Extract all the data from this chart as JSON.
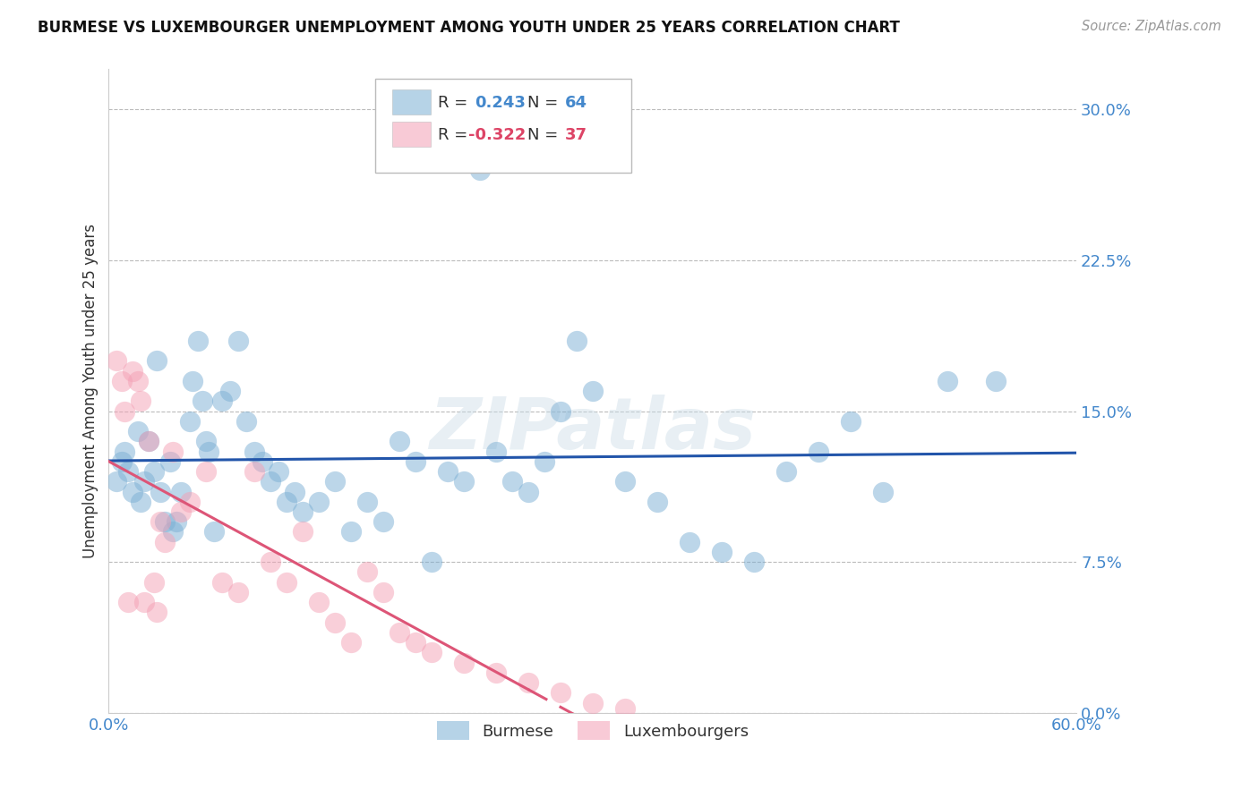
{
  "title": "BURMESE VS LUXEMBOURGER UNEMPLOYMENT AMONG YOUTH UNDER 25 YEARS CORRELATION CHART",
  "source": "Source: ZipAtlas.com",
  "ylabel": "Unemployment Among Youth under 25 years",
  "ytick_values": [
    0.0,
    7.5,
    15.0,
    22.5,
    30.0
  ],
  "xlim": [
    0.0,
    60.0
  ],
  "ylim": [
    0.0,
    32.0
  ],
  "legend_blue_R": "0.243",
  "legend_blue_N": "64",
  "legend_pink_R": "-0.322",
  "legend_pink_N": "37",
  "blue_color": "#7BAFD4",
  "pink_color": "#F4A0B5",
  "line_blue": "#2255AA",
  "line_pink": "#DD5577",
  "watermark": "ZIPatlas",
  "blue_scatter_x": [
    0.5,
    0.8,
    1.0,
    1.2,
    1.5,
    1.8,
    2.0,
    2.2,
    2.5,
    2.8,
    3.0,
    3.2,
    3.5,
    3.8,
    4.0,
    4.2,
    4.5,
    5.0,
    5.2,
    5.5,
    5.8,
    6.0,
    6.2,
    6.5,
    7.0,
    7.5,
    8.0,
    8.5,
    9.0,
    9.5,
    10.0,
    10.5,
    11.0,
    11.5,
    12.0,
    13.0,
    14.0,
    15.0,
    16.0,
    17.0,
    18.0,
    19.0,
    20.0,
    21.0,
    22.0,
    23.0,
    24.0,
    25.0,
    26.0,
    27.0,
    28.0,
    29.0,
    30.0,
    32.0,
    34.0,
    36.0,
    38.0,
    40.0,
    42.0,
    44.0,
    46.0,
    48.0,
    52.0,
    55.0
  ],
  "blue_scatter_y": [
    11.5,
    12.5,
    13.0,
    12.0,
    11.0,
    14.0,
    10.5,
    11.5,
    13.5,
    12.0,
    17.5,
    11.0,
    9.5,
    12.5,
    9.0,
    9.5,
    11.0,
    14.5,
    16.5,
    18.5,
    15.5,
    13.5,
    13.0,
    9.0,
    15.5,
    16.0,
    18.5,
    14.5,
    13.0,
    12.5,
    11.5,
    12.0,
    10.5,
    11.0,
    10.0,
    10.5,
    11.5,
    9.0,
    10.5,
    9.5,
    13.5,
    12.5,
    7.5,
    12.0,
    11.5,
    27.0,
    13.0,
    11.5,
    11.0,
    12.5,
    15.0,
    18.5,
    16.0,
    11.5,
    10.5,
    8.5,
    8.0,
    7.5,
    12.0,
    13.0,
    14.5,
    11.0,
    16.5,
    16.5
  ],
  "pink_scatter_x": [
    0.5,
    0.8,
    1.0,
    1.2,
    1.5,
    1.8,
    2.0,
    2.2,
    2.5,
    2.8,
    3.0,
    3.2,
    3.5,
    4.0,
    4.5,
    5.0,
    6.0,
    7.0,
    8.0,
    9.0,
    10.0,
    11.0,
    12.0,
    13.0,
    14.0,
    15.0,
    16.0,
    17.0,
    18.0,
    19.0,
    20.0,
    22.0,
    24.0,
    26.0,
    28.0,
    30.0,
    32.0
  ],
  "pink_scatter_y": [
    17.5,
    16.5,
    15.0,
    5.5,
    17.0,
    16.5,
    15.5,
    5.5,
    13.5,
    6.5,
    5.0,
    9.5,
    8.5,
    13.0,
    10.0,
    10.5,
    12.0,
    6.5,
    6.0,
    12.0,
    7.5,
    6.5,
    9.0,
    5.5,
    4.5,
    3.5,
    7.0,
    6.0,
    4.0,
    3.5,
    3.0,
    2.5,
    2.0,
    1.5,
    1.0,
    0.5,
    0.2
  ],
  "blue_line_xstart": 0.0,
  "blue_line_xend": 60.0,
  "pink_solid_xend": 26.0,
  "pink_dash_xend": 40.0
}
